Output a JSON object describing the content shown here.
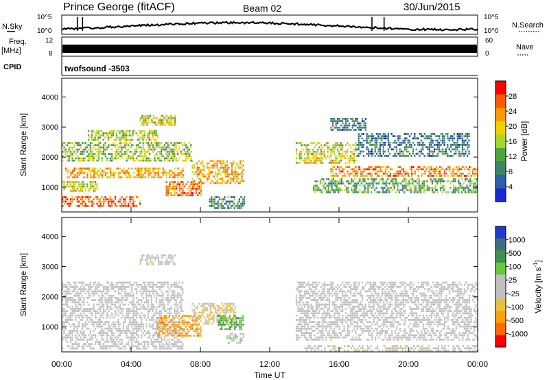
{
  "header": {
    "station": "Prince George (fitACF)",
    "beam": "Beam 02",
    "date": "30/Jun/2015"
  },
  "aux": {
    "nsky_label": "N.Sky",
    "nsky_ticks": [
      "10^5",
      "10^0"
    ],
    "nsearch_label": "N.Search",
    "freq_label_1": "Freq.",
    "freq_label_2": "[MHz]",
    "freq_ticks": [
      "12",
      "8"
    ],
    "nave_label": "Nave",
    "nave_ticks": [
      "60",
      "0"
    ],
    "cpid_label": "CPID",
    "cpid_value": "twofsound  -3503"
  },
  "axes": {
    "ylabel": "Slant Range [km]",
    "yticks": [
      "4000",
      "3000",
      "2000",
      "1000"
    ],
    "xlabel": "Time UT",
    "xticks": [
      "00:00",
      "04:00",
      "08:00",
      "12:00",
      "16:00",
      "20:00",
      "00:00"
    ]
  },
  "colorbars": {
    "power": {
      "label": "Power [dB]",
      "ticks": [
        "28",
        "24",
        "20",
        "16",
        "12",
        "8",
        "4"
      ],
      "colors": [
        "#ff0000",
        "#ff5a00",
        "#ff9a00",
        "#f2d000",
        "#a8d82c",
        "#4ca53b",
        "#3f8466",
        "#2e5fa8",
        "#1a28d8"
      ]
    },
    "velocity": {
      "label": "Velocity  [m s",
      "label_sup": "-1",
      "label_end": "]",
      "ticks": [
        "1000",
        "500",
        "100",
        "25",
        "-25",
        "-100",
        "-500",
        "-1000"
      ],
      "colors": [
        "#1f3cc8",
        "#3f6e7a",
        "#3f8f50",
        "#66c83a",
        "#c0c0c0",
        "#c0c0c0",
        "#e8c040",
        "#ffa000",
        "#ff6a00",
        "#ff0000"
      ]
    }
  },
  "chart_data": [
    {
      "type": "heatmap",
      "title": "Power [dB]",
      "xlabel": "Time UT",
      "ylabel": "Slant Range [km]",
      "xlim": [
        "00:00",
        "24:00"
      ],
      "ylim": [
        200,
        4600
      ],
      "color_range": [
        0,
        32
      ],
      "regions": [
        {
          "t0": 0.0,
          "t1": 4.5,
          "r0": 350,
          "r1": 700,
          "value": 26
        },
        {
          "t0": 0.0,
          "t1": 2.0,
          "r0": 900,
          "r1": 1200,
          "value": 18
        },
        {
          "t0": 0.2,
          "t1": 7.0,
          "r0": 1350,
          "r1": 1650,
          "value": 22
        },
        {
          "t0": 0.0,
          "t1": 7.5,
          "r0": 1900,
          "r1": 2500,
          "value": 15
        },
        {
          "t0": 1.5,
          "t1": 5.5,
          "r0": 2600,
          "r1": 2900,
          "value": 16
        },
        {
          "t0": 4.5,
          "t1": 6.5,
          "r0": 3100,
          "r1": 3400,
          "value": 18
        },
        {
          "t0": 6.0,
          "t1": 8.0,
          "r0": 700,
          "r1": 1200,
          "value": 26
        },
        {
          "t0": 7.5,
          "t1": 10.5,
          "r0": 1100,
          "r1": 1900,
          "value": 22
        },
        {
          "t0": 8.5,
          "t1": 10.5,
          "r0": 300,
          "r1": 700,
          "value": 10
        },
        {
          "t0": 13.5,
          "t1": 17.0,
          "r0": 1800,
          "r1": 2500,
          "value": 18
        },
        {
          "t0": 15.5,
          "t1": 24.0,
          "r0": 1400,
          "r1": 1700,
          "value": 24
        },
        {
          "t0": 14.5,
          "t1": 24.0,
          "r0": 800,
          "r1": 1300,
          "value": 12
        },
        {
          "t0": 17.0,
          "t1": 23.5,
          "r0": 2000,
          "r1": 2800,
          "value": 8
        },
        {
          "t0": 15.5,
          "t1": 17.5,
          "r0": 2900,
          "r1": 3300,
          "value": 8
        }
      ]
    },
    {
      "type": "heatmap",
      "title": "Velocity [m s-1]",
      "xlabel": "Time UT",
      "ylabel": "Slant Range [km]",
      "xlim": [
        "00:00",
        "24:00"
      ],
      "ylim": [
        200,
        4600
      ],
      "color_range": [
        -1000,
        1000
      ],
      "regions": [
        {
          "t0": 0.0,
          "t1": 7.0,
          "r0": 300,
          "r1": 2500,
          "value": 0
        },
        {
          "t0": 5.5,
          "t1": 8.0,
          "r0": 700,
          "r1": 1400,
          "value": -500
        },
        {
          "t0": 7.5,
          "t1": 10.0,
          "r0": 1100,
          "r1": 1800,
          "value": -200
        },
        {
          "t0": 9.0,
          "t1": 10.5,
          "r0": 900,
          "r1": 1400,
          "value": 400
        },
        {
          "t0": 9.5,
          "t1": 10.5,
          "r0": 500,
          "r1": 800,
          "value": 100
        },
        {
          "t0": 4.5,
          "t1": 6.5,
          "r0": 3100,
          "r1": 3400,
          "value": -100
        },
        {
          "t0": 13.5,
          "t1": 24.0,
          "r0": 600,
          "r1": 2500,
          "value": 0
        },
        {
          "t0": 14.0,
          "t1": 24.0,
          "r0": 200,
          "r1": 400,
          "value": -100
        }
      ]
    }
  ]
}
